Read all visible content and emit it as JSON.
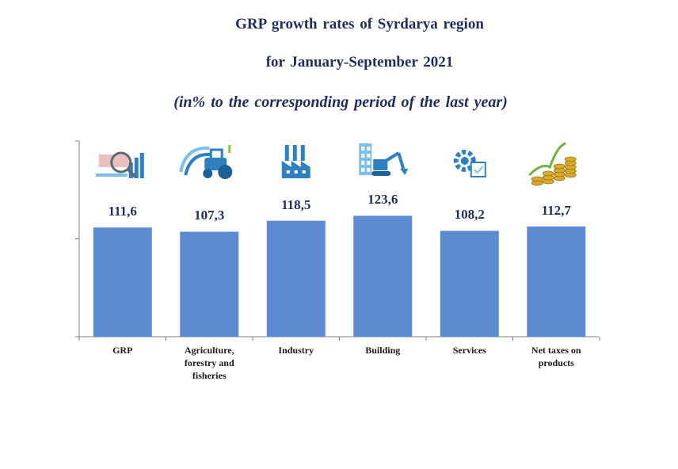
{
  "header": {
    "title_line1": "GRP growth rates of Syrdarya region",
    "title_line2": "for January-September  2021",
    "subtitle": "(in% to the corresponding  period of the last year)"
  },
  "chart_data": {
    "type": "bar",
    "categories": [
      "GRP",
      "Agriculture, forestry and fisheries",
      "Industry",
      "Building",
      "Services",
      "Net taxes on products"
    ],
    "values": [
      111.6,
      107.3,
      118.5,
      123.6,
      108.2,
      112.7
    ],
    "value_labels": [
      "111,6",
      "107,3",
      "118,5",
      "123,6",
      "108,2",
      "112,7"
    ],
    "category_lines": [
      [
        "GRP"
      ],
      [
        "Agriculture,",
        "forestry and",
        "fisheries"
      ],
      [
        "Industry"
      ],
      [
        "Building"
      ],
      [
        "Services"
      ],
      [
        "Net taxes on",
        "products"
      ]
    ],
    "category_icons": [
      "analytics-chart-icon",
      "tractor-icon",
      "factory-icon",
      "construction-excavator-icon",
      "gear-checklist-icon",
      "coins-growth-icon"
    ],
    "title": "GRP growth rates of Syrdarya region for January-September  2021",
    "xlabel": "",
    "ylabel": "",
    "ylim": [
      0,
      200
    ],
    "grid": false,
    "legend": "none",
    "bar_color": "#5b8bd0"
  }
}
